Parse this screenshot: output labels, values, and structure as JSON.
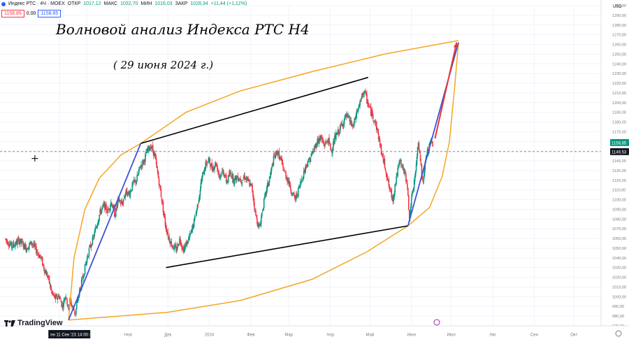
{
  "header": {
    "symbol": "Индекс РТС · 4Ч · MOEX",
    "open_label": "ОТКР",
    "open": "1017,12",
    "high_label": "МАКС",
    "high": "1032,70",
    "low_label": "МИН",
    "low": "1016,03",
    "close_label": "ЗАКР",
    "close": "1028,34",
    "change": "+11,44 (+1,12%)",
    "sell_price": "1158.85",
    "spread": "0.00",
    "buy_price": "1158.85",
    "dot_color": "#2962ff"
  },
  "annotations": {
    "title": "Волновой анализ Индекса РТС Н4",
    "date": "( 29 июня 2024 г.)"
  },
  "brand": {
    "name": "TradingView"
  },
  "currency": "USD",
  "chart_data": {
    "type": "candlestick",
    "title": "",
    "timeframe": "4H",
    "y_axis": {
      "min": 970,
      "max": 1300,
      "step": 10,
      "tick_labels": [
        "970,00",
        "980,00",
        "990,00",
        "1000,00",
        "1010,00",
        "1020,00",
        "1030,00",
        "1040,00",
        "1050,00",
        "1060,00",
        "1070,00",
        "1080,00",
        "1090,00",
        "1100,00",
        "1110,00",
        "1120,00",
        "1130,00",
        "1140,00",
        "1150,00",
        "1160,00",
        "1170,00",
        "1180,00",
        "1190,00",
        "1200,00",
        "1210,00",
        "1220,00",
        "1230,00",
        "1240,00",
        "1250,00",
        "1260,00",
        "1270,00",
        "1280,00",
        "1290,00",
        "1300,00"
      ]
    },
    "x_axis": {
      "labels": [
        {
          "text": "пн 11 Сен '23  14:00",
          "t": 0,
          "highlight": true
        },
        {
          "text": "Окт",
          "t": 15
        },
        {
          "text": "Ноя",
          "t": 38
        },
        {
          "text": "Дек",
          "t": 60
        },
        {
          "text": "2024",
          "t": 83
        },
        {
          "text": "Фев",
          "t": 106
        },
        {
          "text": "Мар",
          "t": 127
        },
        {
          "text": "Апр",
          "t": 150
        },
        {
          "text": "Май",
          "t": 172
        },
        {
          "text": "Июн",
          "t": 195
        },
        {
          "text": "Июл",
          "t": 217
        },
        {
          "text": "Авг",
          "t": 240
        },
        {
          "text": "Сен",
          "t": 263
        },
        {
          "text": "Окт",
          "t": 285
        }
      ],
      "t_max": 300
    },
    "price_path": [
      [
        -30,
        1060
      ],
      [
        -26,
        1052
      ],
      [
        -22,
        1058
      ],
      [
        -18,
        1050
      ],
      [
        -15,
        1056
      ],
      [
        -12,
        1046
      ],
      [
        -10,
        1040
      ],
      [
        -8,
        1028
      ],
      [
        -6,
        1020
      ],
      [
        -4,
        1004
      ],
      [
        -2,
        998
      ],
      [
        0,
        1001
      ],
      [
        2,
        990
      ],
      [
        4,
        1004
      ],
      [
        5,
        986
      ],
      [
        6,
        996
      ],
      [
        8,
        988
      ],
      [
        9,
        982
      ],
      [
        11,
        1002
      ],
      [
        13,
        1018
      ],
      [
        15,
        1035
      ],
      [
        17,
        1050
      ],
      [
        19,
        1060
      ],
      [
        21,
        1075
      ],
      [
        23,
        1088
      ],
      [
        25,
        1094
      ],
      [
        27,
        1088
      ],
      [
        29,
        1098
      ],
      [
        31,
        1084
      ],
      [
        33,
        1100
      ],
      [
        35,
        1095
      ],
      [
        37,
        1108
      ],
      [
        39,
        1106
      ],
      [
        41,
        1116
      ],
      [
        43,
        1120
      ],
      [
        45,
        1134
      ],
      [
        47,
        1140
      ],
      [
        49,
        1150
      ],
      [
        51,
        1156
      ],
      [
        53,
        1146
      ],
      [
        55,
        1124
      ],
      [
        57,
        1100
      ],
      [
        59,
        1074
      ],
      [
        61,
        1060
      ],
      [
        63,
        1052
      ],
      [
        65,
        1048
      ],
      [
        67,
        1060
      ],
      [
        69,
        1048
      ],
      [
        71,
        1056
      ],
      [
        73,
        1064
      ],
      [
        75,
        1078
      ],
      [
        77,
        1096
      ],
      [
        79,
        1120
      ],
      [
        81,
        1135
      ],
      [
        83,
        1141
      ],
      [
        85,
        1132
      ],
      [
        87,
        1138
      ],
      [
        89,
        1124
      ],
      [
        91,
        1130
      ],
      [
        93,
        1118
      ],
      [
        95,
        1128
      ],
      [
        97,
        1120
      ],
      [
        99,
        1124
      ],
      [
        101,
        1120
      ],
      [
        103,
        1124
      ],
      [
        105,
        1118
      ],
      [
        107,
        1112
      ],
      [
        109,
        1084
      ],
      [
        111,
        1070
      ],
      [
        113,
        1092
      ],
      [
        115,
        1110
      ],
      [
        117,
        1124
      ],
      [
        119,
        1142
      ],
      [
        121,
        1150
      ],
      [
        123,
        1140
      ],
      [
        125,
        1128
      ],
      [
        127,
        1120
      ],
      [
        129,
        1108
      ],
      [
        131,
        1100
      ],
      [
        133,
        1112
      ],
      [
        135,
        1124
      ],
      [
        137,
        1136
      ],
      [
        139,
        1142
      ],
      [
        141,
        1150
      ],
      [
        143,
        1160
      ],
      [
        145,
        1164
      ],
      [
        147,
        1156
      ],
      [
        149,
        1162
      ],
      [
        151,
        1150
      ],
      [
        153,
        1164
      ],
      [
        155,
        1170
      ],
      [
        157,
        1178
      ],
      [
        159,
        1186
      ],
      [
        161,
        1182
      ],
      [
        163,
        1174
      ],
      [
        165,
        1190
      ],
      [
        167,
        1200
      ],
      [
        169,
        1213
      ],
      [
        171,
        1200
      ],
      [
        173,
        1190
      ],
      [
        175,
        1182
      ],
      [
        177,
        1166
      ],
      [
        179,
        1146
      ],
      [
        181,
        1132
      ],
      [
        183,
        1112
      ],
      [
        185,
        1100
      ],
      [
        187,
        1124
      ],
      [
        189,
        1140
      ],
      [
        191,
        1130
      ],
      [
        193,
        1118
      ],
      [
        194,
        1080
      ],
      [
        196,
        1108
      ],
      [
        198,
        1134
      ],
      [
        199,
        1160
      ],
      [
        200,
        1150
      ],
      [
        201,
        1124
      ],
      [
        202,
        1118
      ],
      [
        203,
        1140
      ],
      [
        204,
        1148
      ],
      [
        205,
        1152
      ],
      [
        206,
        1160
      ],
      [
        207,
        1158
      ]
    ],
    "drawings": {
      "channel_upper": [
        [
          45,
          1158
        ],
        [
          171,
          1226
        ]
      ],
      "channel_lower": [
        [
          59,
          1030
        ],
        [
          193,
          1073
        ]
      ],
      "wave_lines": [
        [
          [
            5,
            976
          ],
          [
            45,
            1158
          ]
        ],
        [
          [
            193,
            1073
          ],
          [
            221,
            1262
          ]
        ]
      ],
      "target_arrow": [
        [
          208,
          1163
        ],
        [
          220,
          1262
        ]
      ],
      "ellipse_arc_upper": [
        [
          5,
          976
        ],
        [
          8,
          1040
        ],
        [
          14,
          1090
        ],
        [
          22,
          1122
        ],
        [
          34,
          1146
        ],
        [
          45,
          1158
        ],
        [
          70,
          1190
        ],
        [
          100,
          1212
        ],
        [
          140,
          1232
        ],
        [
          180,
          1250
        ],
        [
          221,
          1264
        ]
      ],
      "ellipse_arc_lower": [
        [
          221,
          1262
        ],
        [
          219,
          1218
        ],
        [
          216,
          1160
        ],
        [
          212,
          1124
        ],
        [
          205,
          1092
        ],
        [
          193,
          1073
        ],
        [
          170,
          1046
        ],
        [
          140,
          1018
        ],
        [
          100,
          996
        ],
        [
          60,
          984
        ],
        [
          5,
          976
        ]
      ]
    },
    "current_price_line": 1149.53,
    "price_labels": [
      {
        "value": 1158.85,
        "text": "1158,85",
        "bg": "#089981"
      },
      {
        "value": 1149.53,
        "text": "1149,53",
        "bg": "#131722"
      }
    ],
    "colors": {
      "up": "#089981",
      "down": "#f23645",
      "channel": "#000000",
      "wave": "#3f51d8",
      "target": "#e53935",
      "ellipse": "#f5a623",
      "grid": "#f0f3fa",
      "axis_text": "#787b86"
    }
  }
}
